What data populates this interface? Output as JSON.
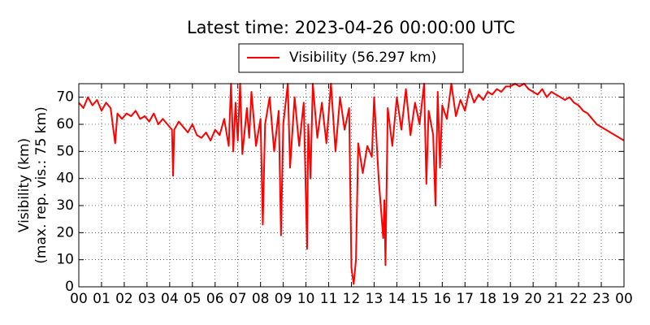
{
  "chart_data": {
    "type": "line",
    "title": "Latest time: 2023-04-26 00:00:00 UTC",
    "ylabel": [
      "Visibility (km)",
      "(max. rep. vis.: 75 km)"
    ],
    "legend": "upper center",
    "grid": true,
    "xlim": [
      0,
      24
    ],
    "ylim": [
      0,
      75
    ],
    "xticks": [
      {
        "value": 0,
        "label": "00"
      },
      {
        "value": 1,
        "label": "01"
      },
      {
        "value": 2,
        "label": "02"
      },
      {
        "value": 3,
        "label": "03"
      },
      {
        "value": 4,
        "label": "04"
      },
      {
        "value": 5,
        "label": "05"
      },
      {
        "value": 6,
        "label": "06"
      },
      {
        "value": 7,
        "label": "07"
      },
      {
        "value": 8,
        "label": "08"
      },
      {
        "value": 9,
        "label": "09"
      },
      {
        "value": 10,
        "label": "10"
      },
      {
        "value": 11,
        "label": "11"
      },
      {
        "value": 12,
        "label": "12"
      },
      {
        "value": 13,
        "label": "13"
      },
      {
        "value": 14,
        "label": "14"
      },
      {
        "value": 15,
        "label": "15"
      },
      {
        "value": 16,
        "label": "16"
      },
      {
        "value": 17,
        "label": "17"
      },
      {
        "value": 18,
        "label": "18"
      },
      {
        "value": 19,
        "label": "19"
      },
      {
        "value": 20,
        "label": "20"
      },
      {
        "value": 21,
        "label": "21"
      },
      {
        "value": 22,
        "label": "22"
      },
      {
        "value": 23,
        "label": "23"
      },
      {
        "value": 24,
        "label": "00"
      }
    ],
    "yticks": [
      0,
      10,
      20,
      30,
      40,
      50,
      60,
      70
    ],
    "x": [
      0.0,
      0.2,
      0.4,
      0.6,
      0.8,
      1.0,
      1.2,
      1.4,
      1.6,
      1.7,
      1.9,
      2.1,
      2.3,
      2.5,
      2.7,
      2.9,
      3.1,
      3.3,
      3.5,
      3.7,
      3.9,
      4.1,
      4.15,
      4.2,
      4.4,
      4.6,
      4.8,
      5.0,
      5.2,
      5.4,
      5.6,
      5.8,
      6.0,
      6.2,
      6.4,
      6.6,
      6.7,
      6.8,
      6.9,
      7.0,
      7.1,
      7.2,
      7.4,
      7.5,
      7.6,
      7.8,
      8.0,
      8.1,
      8.2,
      8.4,
      8.6,
      8.8,
      8.9,
      9.0,
      9.2,
      9.3,
      9.5,
      9.7,
      9.9,
      10.05,
      10.1,
      10.2,
      10.3,
      10.5,
      10.7,
      10.9,
      11.1,
      11.3,
      11.5,
      11.7,
      11.9,
      12.0,
      12.1,
      12.2,
      12.3,
      12.5,
      12.7,
      12.9,
      13.0,
      13.2,
      13.4,
      13.45,
      13.5,
      13.6,
      13.8,
      14.0,
      14.2,
      14.4,
      14.6,
      14.8,
      15.0,
      15.2,
      15.3,
      15.4,
      15.6,
      15.7,
      15.8,
      15.9,
      16.0,
      16.2,
      16.4,
      16.6,
      16.8,
      17.0,
      17.2,
      17.4,
      17.6,
      17.8,
      18.0,
      18.2,
      18.4,
      18.6,
      18.8,
      19.0,
      19.2,
      19.4,
      19.6,
      19.8,
      20.0,
      20.2,
      20.4,
      20.6,
      20.8,
      21.0,
      21.2,
      21.4,
      21.6,
      21.8,
      22.0,
      22.2,
      22.4,
      22.6,
      22.8,
      23.0,
      23.2,
      23.4,
      23.6,
      23.8,
      24.0
    ],
    "series": [
      {
        "name": "Visibility (56.297 km)",
        "color": "#ff0000",
        "values": [
          68,
          66,
          70,
          67,
          69,
          65,
          68,
          66,
          53,
          64,
          62,
          64,
          63,
          65,
          62,
          63,
          61,
          64,
          60,
          62,
          60,
          58,
          41,
          58,
          61,
          59,
          57,
          60,
          56,
          55,
          57,
          54,
          58,
          56,
          62,
          52,
          75,
          50,
          68,
          54,
          75,
          49,
          66,
          55,
          72,
          52,
          62,
          23,
          60,
          70,
          50,
          65,
          19,
          60,
          75,
          44,
          70,
          52,
          68,
          14,
          60,
          40,
          75,
          55,
          68,
          53,
          75,
          50,
          70,
          58,
          66,
          7,
          1,
          10,
          53,
          42,
          52,
          48,
          70,
          40,
          18,
          32,
          8,
          66,
          52,
          70,
          58,
          73,
          56,
          68,
          60,
          75,
          38,
          65,
          56,
          30,
          72,
          44,
          67,
          62,
          75,
          63,
          69,
          65,
          73,
          68,
          71,
          69,
          72,
          71,
          73,
          72,
          74,
          74,
          75,
          74,
          75,
          73,
          72,
          71,
          73,
          70,
          72,
          71,
          70,
          69,
          70,
          68,
          67,
          65,
          64,
          62,
          60,
          59,
          58,
          57,
          56,
          55,
          54
        ]
      }
    ]
  }
}
